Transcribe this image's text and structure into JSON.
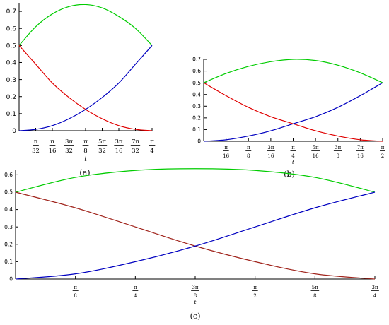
{
  "chart_data": [
    {
      "type": "line",
      "caption": "(a)",
      "xlabel": "t",
      "xlim_pi": [
        0,
        0.25
      ],
      "ylim": [
        0,
        0.75
      ],
      "yticks": [
        "0",
        "0.1",
        "0.2",
        "0.3",
        "0.4",
        "0.5",
        "0.6",
        "0.7"
      ],
      "xticks": [
        {
          "num": "π",
          "den": "32",
          "value_pi": 0.03125
        },
        {
          "num": "π",
          "den": "16",
          "value_pi": 0.0625
        },
        {
          "num": "3π",
          "den": "32",
          "value_pi": 0.09375
        },
        {
          "num": "π",
          "den": "8",
          "value_pi": 0.125
        },
        {
          "num": "5π",
          "den": "32",
          "value_pi": 0.15625
        },
        {
          "num": "3π",
          "den": "16",
          "value_pi": 0.1875
        },
        {
          "num": "7π",
          "den": "32",
          "value_pi": 0.21875
        },
        {
          "num": "π",
          "den": "4",
          "value_pi": 0.25
        }
      ],
      "series": [
        {
          "color": "#00cc00",
          "x_pi": [
            0,
            0.03125,
            0.0625,
            0.09375,
            0.125,
            0.15625,
            0.1875,
            0.21875,
            0.25
          ],
          "values": [
            0.5,
            0.61,
            0.685,
            0.728,
            0.74,
            0.72,
            0.67,
            0.6,
            0.5
          ]
        },
        {
          "color": "#e00000",
          "x_pi": [
            0,
            0.03125,
            0.0625,
            0.09375,
            0.125,
            0.15625,
            0.1875,
            0.21875,
            0.25
          ],
          "values": [
            0.5,
            0.39,
            0.28,
            0.195,
            0.125,
            0.07,
            0.03,
            0.008,
            0.0
          ]
        },
        {
          "color": "#0000c0",
          "x_pi": [
            0,
            0.03125,
            0.0625,
            0.09375,
            0.125,
            0.15625,
            0.1875,
            0.21875,
            0.25
          ],
          "values": [
            0.0,
            0.008,
            0.03,
            0.07,
            0.125,
            0.195,
            0.28,
            0.39,
            0.5
          ]
        }
      ]
    },
    {
      "type": "line",
      "caption": "(b)",
      "xlabel": "t",
      "xlim_pi": [
        0,
        0.5
      ],
      "ylim": [
        0,
        0.7
      ],
      "yticks": [
        "0",
        "0.1",
        "0.2",
        "0.3",
        "0.4",
        "0.5",
        "0.6",
        "0.7"
      ],
      "xticks": [
        {
          "num": "π",
          "den": "16",
          "value_pi": 0.0625
        },
        {
          "num": "π",
          "den": "8",
          "value_pi": 0.125
        },
        {
          "num": "3π",
          "den": "16",
          "value_pi": 0.1875
        },
        {
          "num": "π",
          "den": "4",
          "value_pi": 0.25
        },
        {
          "num": "5π",
          "den": "16",
          "value_pi": 0.3125
        },
        {
          "num": "3π",
          "den": "8",
          "value_pi": 0.375
        },
        {
          "num": "7π",
          "den": "16",
          "value_pi": 0.4375
        },
        {
          "num": "π",
          "den": "2",
          "value_pi": 0.5
        }
      ],
      "series": [
        {
          "color": "#00cc00",
          "x_pi": [
            0,
            0.0625,
            0.125,
            0.1875,
            0.25,
            0.3125,
            0.375,
            0.4375,
            0.5
          ],
          "values": [
            0.5,
            0.58,
            0.64,
            0.68,
            0.7,
            0.69,
            0.65,
            0.585,
            0.5
          ]
        },
        {
          "color": "#e00000",
          "x_pi": [
            0,
            0.0625,
            0.125,
            0.1875,
            0.25,
            0.3125,
            0.375,
            0.4375,
            0.5
          ],
          "values": [
            0.5,
            0.39,
            0.29,
            0.21,
            0.15,
            0.09,
            0.045,
            0.013,
            0.0
          ]
        },
        {
          "color": "#0000c0",
          "x_pi": [
            0,
            0.0625,
            0.125,
            0.1875,
            0.25,
            0.3125,
            0.375,
            0.4375,
            0.5
          ],
          "values": [
            0.0,
            0.013,
            0.045,
            0.09,
            0.15,
            0.21,
            0.29,
            0.39,
            0.5
          ]
        }
      ]
    },
    {
      "type": "line",
      "caption": "(c)",
      "xlabel": "t",
      "xlim_pi": [
        0,
        0.75
      ],
      "ylim": [
        0,
        0.63
      ],
      "yticks": [
        "0",
        "0.1",
        "0.2",
        "0.3",
        "0.4",
        "0.5",
        "0.6"
      ],
      "xticks": [
        {
          "num": "π",
          "den": "8",
          "value_pi": 0.125
        },
        {
          "num": "π",
          "den": "4",
          "value_pi": 0.25
        },
        {
          "num": "3π",
          "den": "8",
          "value_pi": 0.375
        },
        {
          "num": "π",
          "den": "2",
          "value_pi": 0.5
        },
        {
          "num": "5π",
          "den": "8",
          "value_pi": 0.625
        },
        {
          "num": "3π",
          "den": "4",
          "value_pi": 0.75
        }
      ],
      "series": [
        {
          "color": "#00cc00",
          "x_pi": [
            0,
            0.125,
            0.25,
            0.375,
            0.5,
            0.625,
            0.75
          ],
          "values": [
            0.5,
            0.585,
            0.625,
            0.635,
            0.625,
            0.585,
            0.5
          ]
        },
        {
          "color": "#a0241c",
          "x_pi": [
            0,
            0.125,
            0.25,
            0.375,
            0.5,
            0.625,
            0.75
          ],
          "values": [
            0.5,
            0.41,
            0.3,
            0.19,
            0.1,
            0.03,
            0.0
          ]
        },
        {
          "color": "#0000c0",
          "x_pi": [
            0,
            0.125,
            0.25,
            0.375,
            0.5,
            0.625,
            0.75
          ],
          "values": [
            0.0,
            0.03,
            0.1,
            0.19,
            0.3,
            0.41,
            0.5
          ]
        }
      ]
    }
  ]
}
